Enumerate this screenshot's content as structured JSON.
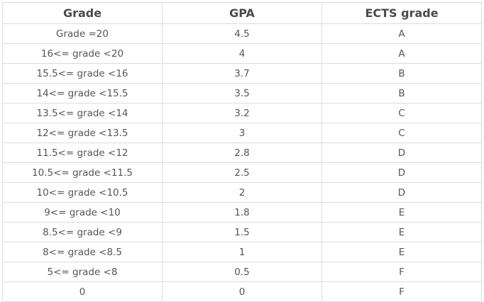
{
  "table": {
    "headers": [
      "Grade",
      "GPA",
      "ECTS grade"
    ],
    "rows": [
      [
        "Grade =20",
        "4.5",
        "A"
      ],
      [
        "16<= grade <20",
        "4",
        "A"
      ],
      [
        "15.5<= grade <16",
        "3.7",
        "B"
      ],
      [
        "14<= grade <15.5",
        "3.5",
        "B"
      ],
      [
        "13.5<= grade <14",
        "3.2",
        "C"
      ],
      [
        "12<= grade <13.5",
        "3",
        "C"
      ],
      [
        "11.5<= grade <12",
        "2.8",
        "D"
      ],
      [
        "10.5<= grade <11.5",
        "2.5",
        "D"
      ],
      [
        "10<= grade <10.5",
        "2",
        "D"
      ],
      [
        "9<= grade <10",
        "1.8",
        "E"
      ],
      [
        "8.5<= grade <9",
        "1.5",
        "E"
      ],
      [
        "8<= grade <8.5",
        "1",
        "E"
      ],
      [
        "5<= grade <8",
        "0.5",
        "F"
      ],
      [
        "0",
        "0",
        "F"
      ]
    ]
  }
}
